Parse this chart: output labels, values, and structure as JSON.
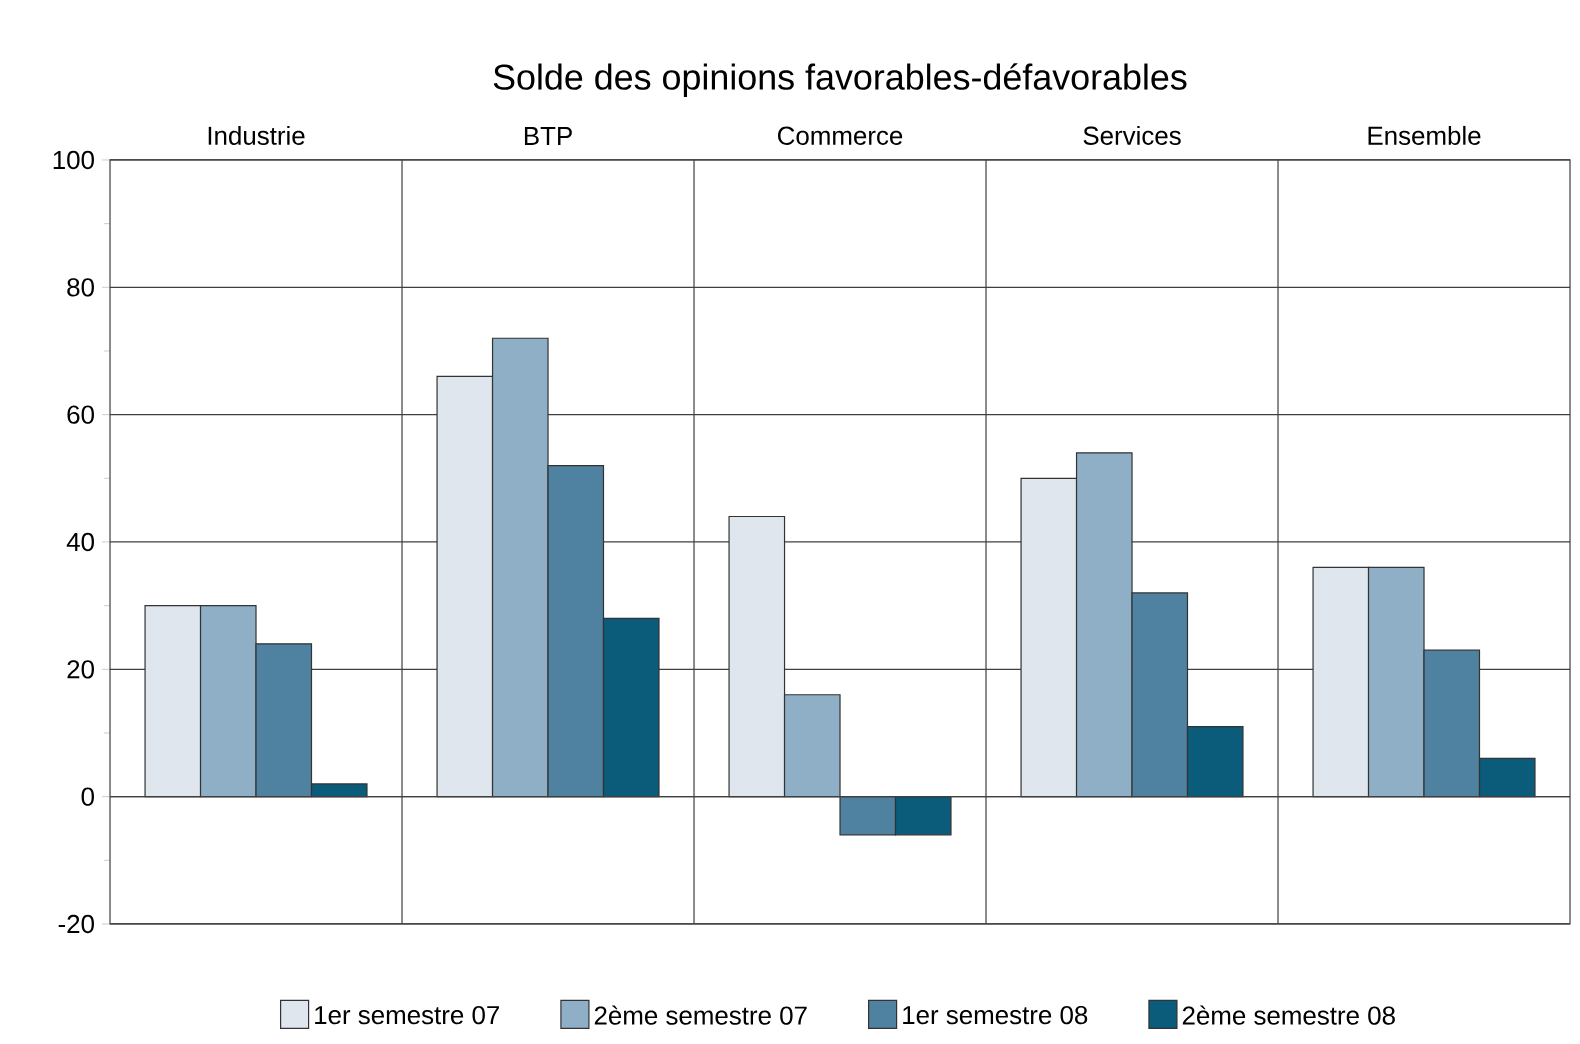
{
  "chart_data": {
    "type": "bar",
    "title": "Solde des opinions favorables-défavorables",
    "categories": [
      "Industrie",
      "BTP",
      "Commerce",
      "Services",
      "Ensemble"
    ],
    "series": [
      {
        "name": "1er semestre 07",
        "color": "#dfe6ee",
        "values": [
          30,
          66,
          44,
          50,
          36
        ]
      },
      {
        "name": "2ème semestre 07",
        "color": "#8fafc7",
        "values": [
          30,
          72,
          16,
          54,
          36
        ]
      },
      {
        "name": "1er semestre 08",
        "color": "#4f81a1",
        "values": [
          24,
          52,
          -6,
          32,
          23
        ]
      },
      {
        "name": "2ème semestre 08",
        "color": "#0b5b7a",
        "values": [
          2,
          28,
          -6,
          11,
          6
        ]
      }
    ],
    "ylim": [
      -20,
      100
    ],
    "yticks": [
      -20,
      {
        "value": -10,
        "label": null
      },
      0,
      {
        "value": 10,
        "label": null
      },
      20,
      {
        "value": 30,
        "label": null
      },
      40,
      {
        "value": 50,
        "label": null
      },
      60,
      {
        "value": 70,
        "label": null
      },
      80,
      {
        "value": 90,
        "label": null
      },
      100
    ],
    "grid": true,
    "legend": "bottom"
  }
}
